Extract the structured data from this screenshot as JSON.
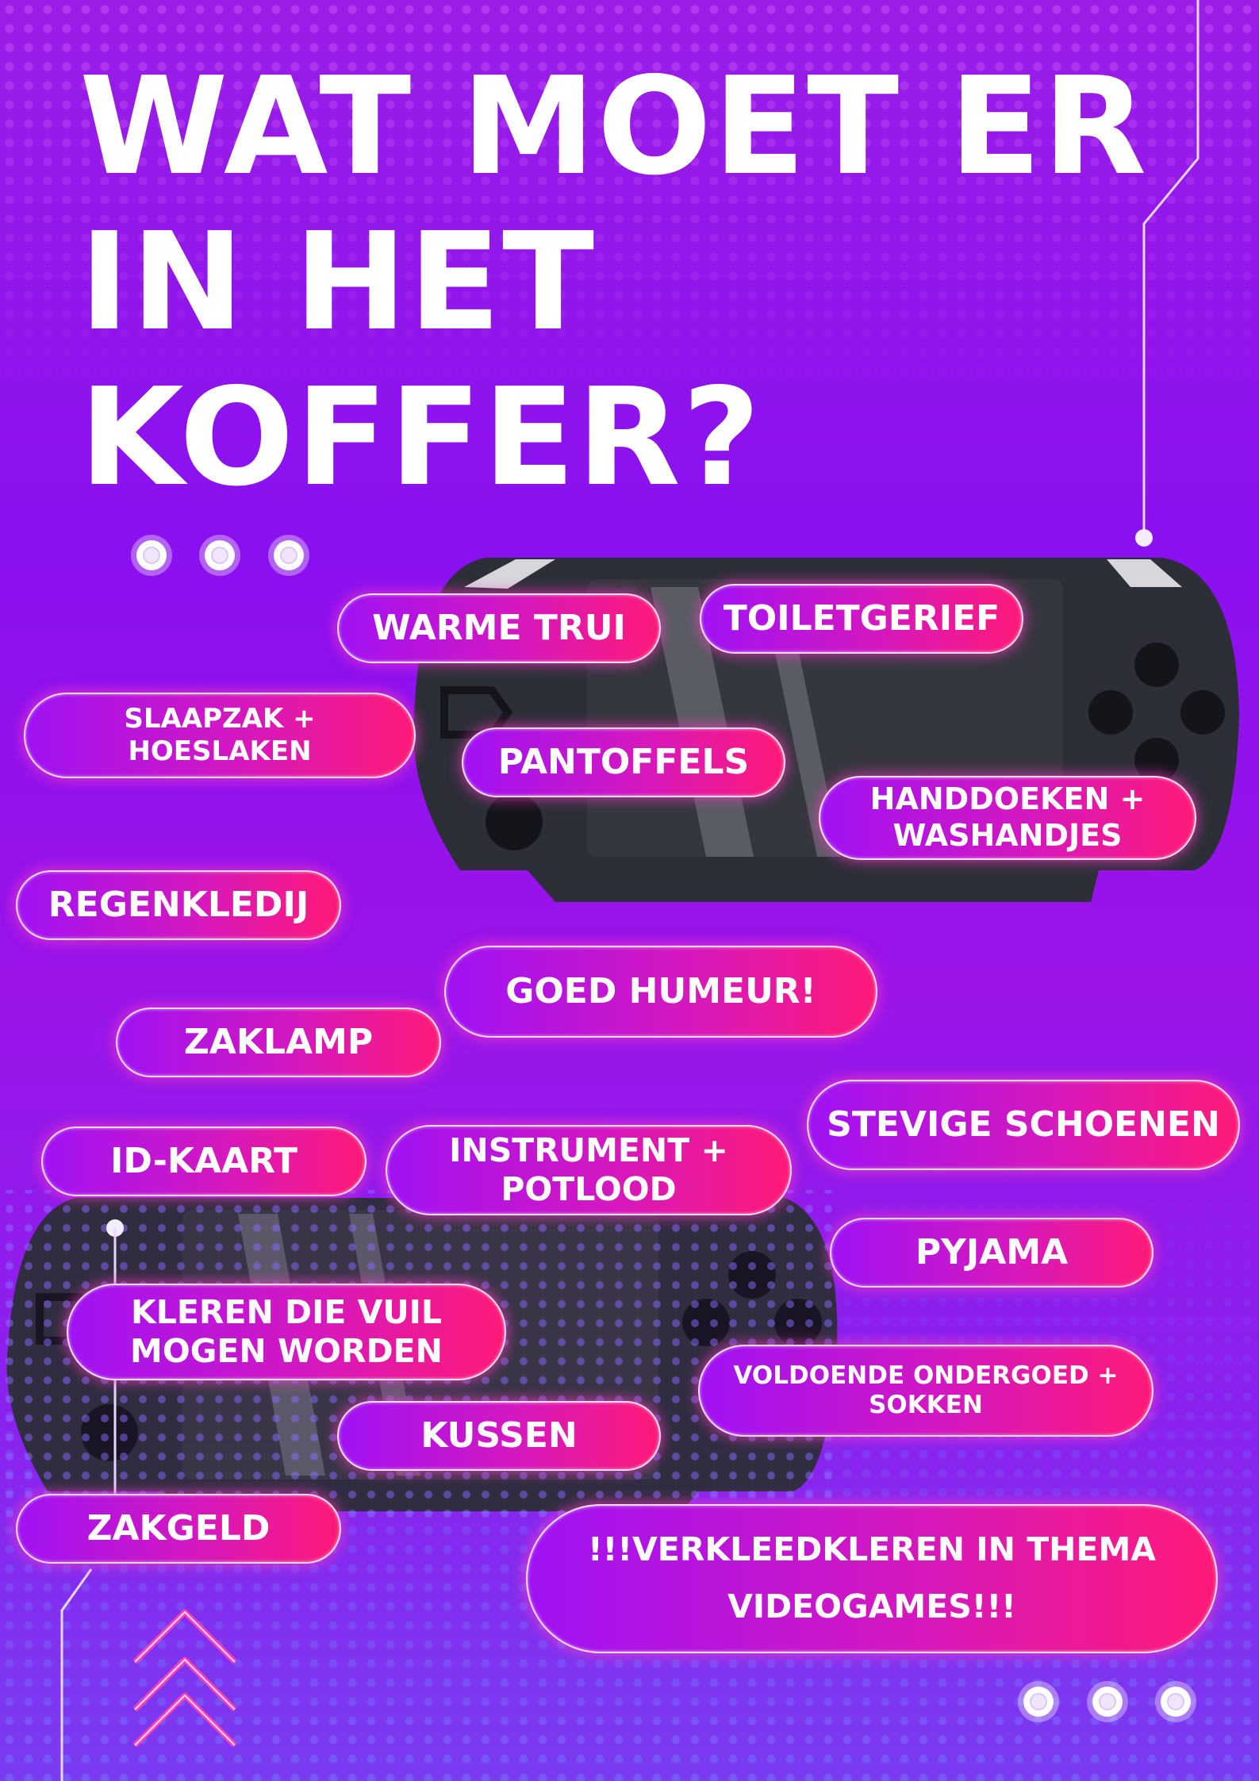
{
  "title": {
    "line1": "WAT MOET ER",
    "line2": "IN HET",
    "line3": "KOFFER?"
  },
  "colors": {
    "background": "#8a10f0",
    "pill_start": "#a012f4",
    "pill_end": "#ff1a78",
    "console": "#2c2e38"
  },
  "icons": [
    "game-console-icon",
    "chevron-up-icon",
    "dot-indicator-icon"
  ],
  "items": {
    "warme_trui": "WARME TRUI",
    "toiletgerief": "TOILETGERIEF",
    "slaapzak": "SLAAPZAK +\nHOESLAKEN",
    "pantoffels": "PANTOFFELS",
    "handdoeken": "HANDDOEKEN +\nWASHANDJES",
    "regenkledij": "REGENKLEDIJ",
    "goed_humeur": "GOED HUMEUR!",
    "zaklamp": "ZAKLAMP",
    "stevige_schoenen": "STEVIGE SCHOENEN",
    "id_kaart": "ID-KAART",
    "instrument": "INSTRUMENT +\nPOTLOOD",
    "pyjama": "PYJAMA",
    "kleren_vuil": "KLEREN DIE VUIL\nMOGEN WORDEN",
    "ondergoed": "VOLDOENDE ONDERGOED +\nSOKKEN",
    "kussen": "KUSSEN",
    "zakgeld": "ZAKGELD",
    "verkleedkleren": "!!!VERKLEEDKLEREN IN THEMA\nVIDEOGAMES!!!"
  }
}
